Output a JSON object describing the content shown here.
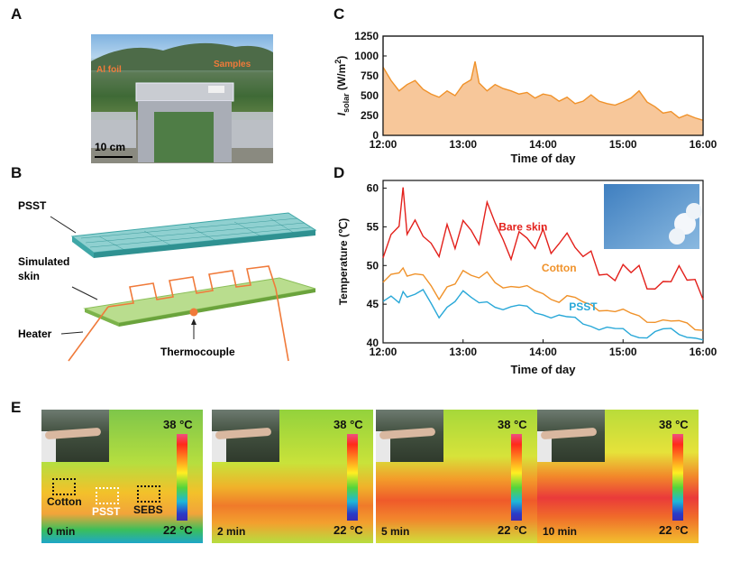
{
  "panels": {
    "a": {
      "label": "A",
      "annotation_al": "Al foil",
      "annotation_samples": "Samples",
      "scale_bar": "10 cm"
    },
    "b": {
      "label": "B",
      "psst": "PSST",
      "simulated_skin": "Simulated skin",
      "simulated_line1": "Simulated",
      "simulated_line2": "skin",
      "heater": "Heater",
      "thermocouple": "Thermocouple"
    },
    "c": {
      "label": "C"
    },
    "d": {
      "label": "D"
    },
    "e": {
      "label": "E",
      "top_temp": "38 °C",
      "bottom_temp": "22 °C",
      "frames": [
        {
          "time": "0 min"
        },
        {
          "time": "2 min"
        },
        {
          "time": "5 min"
        },
        {
          "time": "10 min"
        }
      ],
      "samples": {
        "cotton": "Cotton",
        "psst": "PSST",
        "sebs": "SEBS"
      }
    }
  },
  "chart_data": [
    {
      "type": "area",
      "panel": "C",
      "title": "",
      "xlabel": "Time of day",
      "ylabel_main": "I",
      "ylabel_sub": "solar",
      "ylabel_unit": "(W/m",
      "ylabel_sup": "2",
      "ylabel_close": ")",
      "x_ticks": [
        "12:00",
        "13:00",
        "14:00",
        "15:00",
        "16:00"
      ],
      "y_ticks": [
        "0",
        "250",
        "500",
        "750",
        "1000",
        "1250"
      ],
      "ylim": [
        0,
        1250
      ],
      "xlim_hours": [
        12,
        16
      ],
      "color": "#f0922a",
      "fill": "#f7c79a",
      "x": [
        12.0,
        12.1,
        12.2,
        12.3,
        12.4,
        12.5,
        12.6,
        12.7,
        12.8,
        12.9,
        13.0,
        13.1,
        13.15,
        13.2,
        13.3,
        13.4,
        13.5,
        13.6,
        13.7,
        13.8,
        13.9,
        14.0,
        14.1,
        14.2,
        14.3,
        14.4,
        14.5,
        14.6,
        14.7,
        14.8,
        14.9,
        15.0,
        15.1,
        15.2,
        15.3,
        15.4,
        15.5,
        15.6,
        15.7,
        15.8,
        15.9,
        16.0
      ],
      "values": [
        860,
        690,
        560,
        640,
        690,
        580,
        520,
        480,
        560,
        500,
        640,
        700,
        930,
        660,
        560,
        640,
        590,
        560,
        520,
        540,
        470,
        520,
        500,
        430,
        480,
        400,
        430,
        510,
        430,
        400,
        380,
        420,
        470,
        560,
        420,
        360,
        280,
        300,
        220,
        260,
        220,
        190
      ]
    },
    {
      "type": "line",
      "panel": "D",
      "xlabel": "Time of day",
      "ylabel": "Temperature (℃)",
      "x_ticks": [
        "12:00",
        "13:00",
        "14:00",
        "15:00",
        "16:00"
      ],
      "y_ticks": [
        "40",
        "45",
        "50",
        "55",
        "60"
      ],
      "ylim": [
        40,
        61
      ],
      "xlim_hours": [
        12,
        16
      ],
      "x": [
        12.0,
        12.1,
        12.2,
        12.25,
        12.3,
        12.4,
        12.5,
        12.6,
        12.7,
        12.8,
        12.9,
        13.0,
        13.1,
        13.2,
        13.3,
        13.4,
        13.5,
        13.6,
        13.7,
        13.8,
        13.9,
        14.0,
        14.1,
        14.2,
        14.3,
        14.4,
        14.5,
        14.6,
        14.7,
        14.8,
        14.9,
        15.0,
        15.1,
        15.2,
        15.3,
        15.4,
        15.5,
        15.6,
        15.7,
        15.8,
        15.9,
        16.0
      ],
      "series": [
        {
          "name": "Bare  skin",
          "color": "#e3201b",
          "values": [
            51,
            53,
            54,
            60,
            55,
            57,
            54,
            52,
            50,
            55,
            53,
            57,
            55,
            52,
            57,
            55,
            54,
            52,
            55,
            53,
            51,
            54,
            52,
            54,
            55,
            52,
            50,
            51,
            49,
            50,
            49,
            50,
            48,
            49,
            47,
            48,
            49,
            48,
            49,
            47,
            48,
            46.5
          ]
        },
        {
          "name": "Cotton",
          "color": "#f0922a",
          "values": [
            47.5,
            48.5,
            49,
            50,
            49,
            49,
            48.5,
            47,
            45.5,
            47.5,
            48,
            49.5,
            48.5,
            48,
            49,
            48,
            47.5,
            47.5,
            47,
            47,
            46.5,
            46.5,
            46,
            45.5,
            46,
            45.5,
            45,
            45,
            44.5,
            44.5,
            44,
            44,
            43.5,
            43.5,
            43,
            43,
            43,
            42.5,
            42.5,
            42.5,
            42,
            42
          ]
        },
        {
          "name": "PSST",
          "color": "#29a8d8",
          "values": [
            45,
            46,
            45.5,
            47,
            46,
            46,
            46.5,
            45,
            43.5,
            45,
            45.5,
            46.5,
            45.5,
            45,
            45.5,
            45,
            44.5,
            44.5,
            44.5,
            44.5,
            44,
            44,
            43.5,
            43.5,
            43,
            43,
            42.5,
            42.5,
            42,
            42,
            41.5,
            41.5,
            41,
            41,
            41,
            41.5,
            41.5,
            41.5,
            41,
            41,
            41,
            40.5
          ]
        }
      ]
    }
  ]
}
